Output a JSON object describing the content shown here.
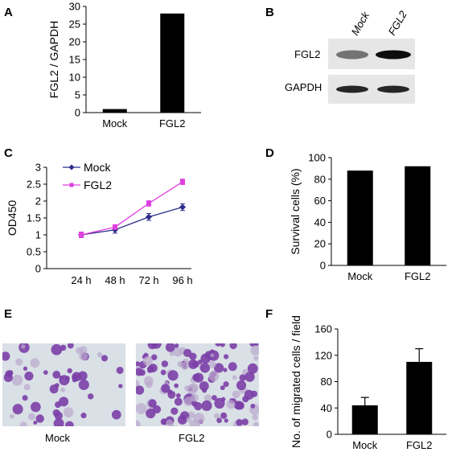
{
  "figure": {
    "panels": {
      "A": "A",
      "B": "B",
      "C": "C",
      "D": "D",
      "E": "E",
      "F": "F"
    },
    "blot": {
      "lane_labels": [
        "Mock",
        "FGL2"
      ],
      "row_labels": [
        "FGL2",
        "GAPDH"
      ],
      "band_intensity": {
        "FGL2": [
          0.55,
          0.95
        ],
        "GAPDH": [
          0.85,
          0.85
        ]
      }
    },
    "micrographs": {
      "captions": [
        "Mock",
        "FGL2"
      ],
      "stain_color": "#7b3fa7",
      "background_color": "#d9e0e6"
    }
  },
  "chart_data": [
    {
      "panel": "A",
      "type": "bar",
      "categories": [
        "Mock",
        "FGL2"
      ],
      "values": [
        1,
        28
      ],
      "xlabel": "",
      "ylabel": "FGL2 / GAPDH",
      "ylim": [
        0,
        30
      ],
      "yticks": [
        0,
        5,
        10,
        15,
        20,
        25,
        30
      ],
      "bar_color": "#000000"
    },
    {
      "panel": "C",
      "type": "line",
      "x": [
        "24 h",
        "48 h",
        "72 h",
        "96 h"
      ],
      "series": [
        {
          "name": "Mock",
          "values": [
            1.0,
            1.15,
            1.53,
            1.82
          ],
          "errors": [
            0.08,
            0.1,
            0.1,
            0.1
          ],
          "color": "#2c2c8c",
          "marker": "diamond"
        },
        {
          "name": "FGL2",
          "values": [
            1.0,
            1.23,
            1.93,
            2.57
          ],
          "errors": [
            0.08,
            0.07,
            0.08,
            0.08
          ],
          "color": "#e040e0",
          "marker": "square"
        }
      ],
      "ylabel": "OD450",
      "xlabel": "",
      "ylim": [
        0,
        3
      ],
      "yticks": [
        "0",
        "0.5",
        "1",
        "1.5",
        "2",
        "2.5",
        "3"
      ],
      "legend": "top-left"
    },
    {
      "panel": "D",
      "type": "bar",
      "categories": [
        "Mock",
        "FGL2"
      ],
      "values": [
        88,
        92
      ],
      "xlabel": "",
      "ylabel": "Survival cells (%)",
      "ylim": [
        0,
        100
      ],
      "yticks": [
        0,
        20,
        40,
        60,
        80,
        100
      ],
      "bar_color": "#000000"
    },
    {
      "panel": "F",
      "type": "bar",
      "categories": [
        "Mock",
        "FGL2"
      ],
      "values": [
        44,
        110
      ],
      "errors": [
        12,
        20
      ],
      "xlabel": "",
      "ylabel": "No. of migrated cells / field",
      "ylim": [
        0,
        160
      ],
      "yticks": [
        0,
        40,
        80,
        120,
        160
      ],
      "bar_color": "#000000"
    }
  ]
}
